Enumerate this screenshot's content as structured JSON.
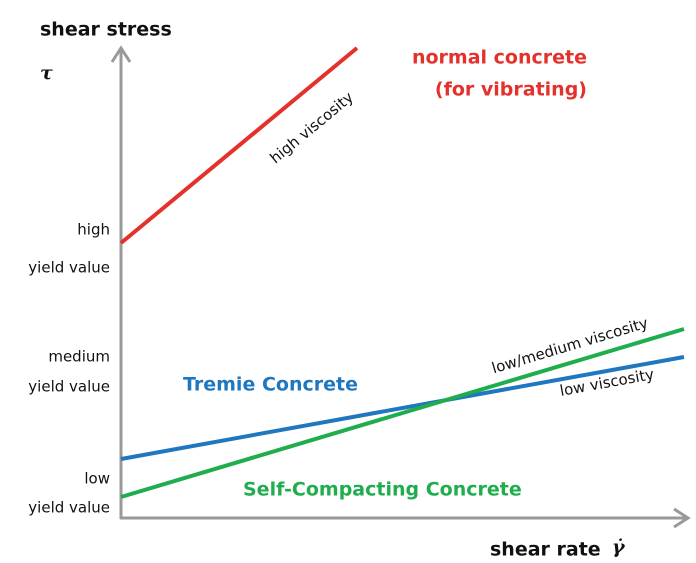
{
  "axes": {
    "y_label": "shear stress",
    "y_symbol": "τ",
    "x_label": "shear  rate",
    "x_symbol": "γ̇"
  },
  "y_levels": [
    {
      "line1": "high",
      "line2": "yield value"
    },
    {
      "line1": "medium",
      "line2": "yield value"
    },
    {
      "line1": "low",
      "line2": "yield value"
    }
  ],
  "curves": [
    {
      "label_line1": "normal concrete",
      "label_line2": "(for vibrating)",
      "viscosity": "high viscosity"
    },
    {
      "label": "Tremie Concrete",
      "viscosity": "low viscosity"
    },
    {
      "label": "Self-Compacting Concrete",
      "viscosity": "low/medium viscosity"
    }
  ]
}
